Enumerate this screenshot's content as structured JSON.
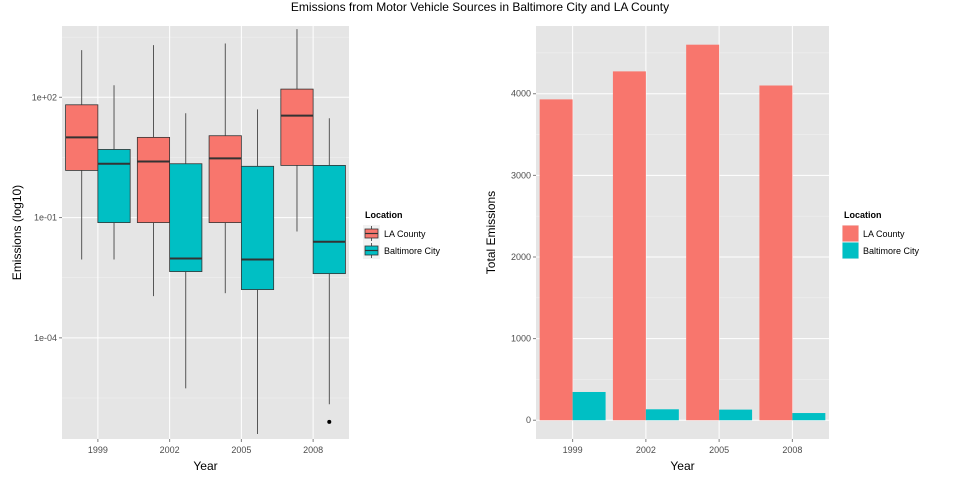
{
  "figure": {
    "title": "Emissions from Motor Vehicle Sources in Baltimore City and LA County"
  },
  "colors": {
    "panel_bg": "#e5e5e5",
    "grid_major": "#ffffff",
    "grid_minor": "#f2f2f2",
    "LA County": "#f8766d",
    "Baltimore City": "#00bfc4",
    "outline": "#333333"
  },
  "chart_data": [
    {
      "type": "boxplot",
      "xlabel": "Year",
      "ylabel": "Emissions (log10)",
      "y_scale": "log10",
      "ylim": [
        3e-07,
        6000
      ],
      "y_ticks": [
        {
          "value": 100,
          "label": "1e+02"
        },
        {
          "value": 0.1,
          "label": "1e-01"
        },
        {
          "value": 0.0001,
          "label": "1e-04"
        }
      ],
      "categories": [
        "1999",
        "2002",
        "2005",
        "2008"
      ],
      "grid": true,
      "legend": {
        "title": "Location",
        "position": "right",
        "entries": [
          "LA County",
          "Baltimore City"
        ]
      },
      "series": [
        {
          "name": "LA County",
          "boxes": [
            {
              "year": "1999",
              "min": 0.009,
              "q1": 1.5,
              "median": 10,
              "q3": 65,
              "max": 1500,
              "outliers": []
            },
            {
              "year": "2002",
              "min": 0.0011,
              "q1": 0.075,
              "median": 2.5,
              "q3": 10,
              "max": 2000,
              "outliers": []
            },
            {
              "year": "2005",
              "min": 0.0013,
              "q1": 0.075,
              "median": 3,
              "q3": 11,
              "max": 2200,
              "outliers": []
            },
            {
              "year": "2008",
              "min": 0.045,
              "q1": 2,
              "median": 35,
              "q3": 160,
              "max": 5000,
              "outliers": []
            }
          ]
        },
        {
          "name": "Baltimore City",
          "boxes": [
            {
              "year": "1999",
              "min": 0.009,
              "q1": 0.075,
              "median": 2.2,
              "q3": 5,
              "max": 200,
              "outliers": []
            },
            {
              "year": "2002",
              "min": 5.5e-06,
              "q1": 0.0045,
              "median": 0.0095,
              "q3": 2.2,
              "max": 40,
              "outliers": []
            },
            {
              "year": "2005",
              "min": 4e-07,
              "q1": 0.0016,
              "median": 0.009,
              "q3": 1.9,
              "max": 50,
              "outliers": []
            },
            {
              "year": "2008",
              "min": 2.2e-06,
              "q1": 0.004,
              "median": 0.025,
              "q3": 2,
              "max": 30,
              "outliers": [
                8e-07
              ]
            }
          ]
        }
      ]
    },
    {
      "type": "bar",
      "xlabel": "Year",
      "ylabel": "Total Emissions",
      "ylim": [
        -230,
        4830
      ],
      "y_ticks": [
        0,
        1000,
        2000,
        3000,
        4000
      ],
      "categories": [
        "1999",
        "2002",
        "2005",
        "2008"
      ],
      "grid": true,
      "legend": {
        "title": "Location",
        "position": "right",
        "entries": [
          "LA County",
          "Baltimore City"
        ]
      },
      "series": [
        {
          "name": "LA County",
          "values": [
            3931,
            4274,
            4601,
            4101
          ]
        },
        {
          "name": "Baltimore City",
          "values": [
            346,
            134,
            130,
            88
          ]
        }
      ]
    }
  ]
}
